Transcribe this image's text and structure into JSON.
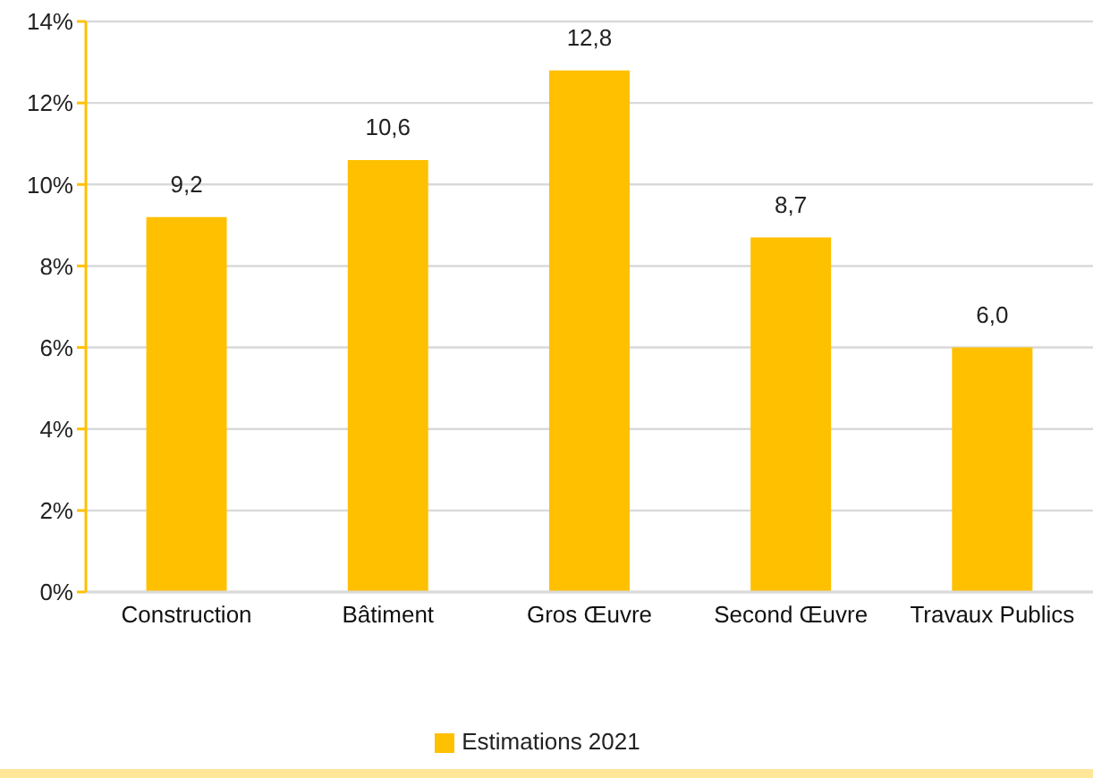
{
  "chart_data": {
    "type": "bar",
    "categories": [
      "Construction",
      "Bâtiment",
      "Gros Œuvre",
      "Second Œuvre",
      "Travaux Publics"
    ],
    "series": [
      {
        "name": "Estimations 2021",
        "color": "#ffc000",
        "values": [
          9.2,
          10.6,
          12.8,
          8.7,
          6.0
        ],
        "value_labels": [
          "9,2",
          "10,6",
          "12,8",
          "8,7",
          "6,0"
        ]
      }
    ],
    "ylim": [
      0,
      14
    ],
    "yticks": [
      {
        "value": 0,
        "label": "0%"
      },
      {
        "value": 2,
        "label": "2%"
      },
      {
        "value": 4,
        "label": "4%"
      },
      {
        "value": 6,
        "label": "6%"
      },
      {
        "value": 8,
        "label": "8%"
      },
      {
        "value": 10,
        "label": "10%"
      },
      {
        "value": 12,
        "label": "12%"
      },
      {
        "value": 14,
        "label": "14%"
      }
    ],
    "grid": "y",
    "legend": "bottom"
  }
}
